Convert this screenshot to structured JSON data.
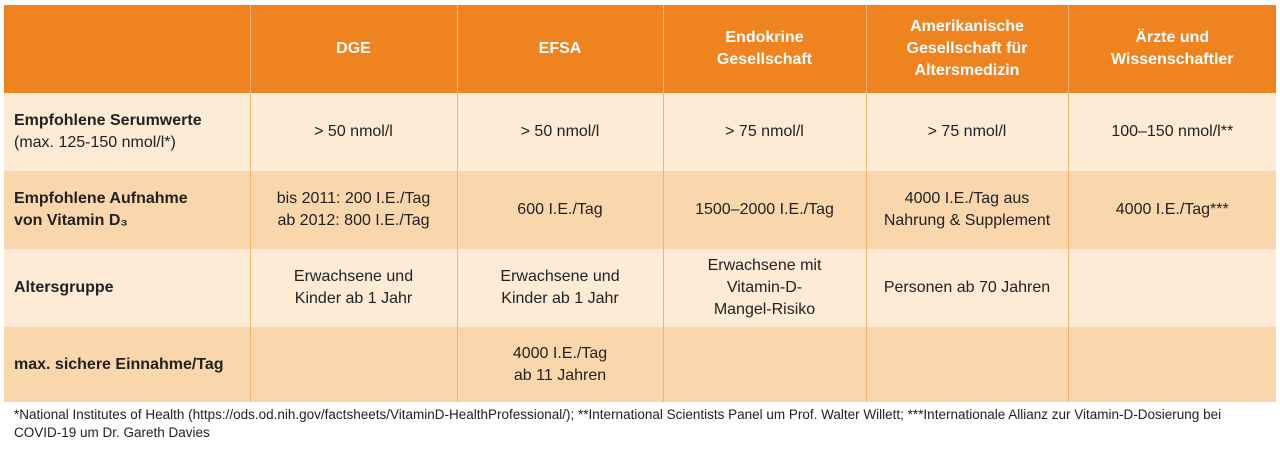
{
  "table": {
    "header": [
      [
        "DGE"
      ],
      [
        "EFSA"
      ],
      [
        "Endokrine",
        "Gesellschaft"
      ],
      [
        "Amerikanische",
        "Gesellschaft für",
        "Altersmedizin"
      ],
      [
        "Ärzte und",
        "Wissenschaftler"
      ]
    ],
    "rows": [
      {
        "label": [
          "Empfohlene Serumwerte"
        ],
        "sublabel": [
          "(max. 125-150 nmol/l*)"
        ],
        "cells": [
          [
            "> 50 nmol/l"
          ],
          [
            "> 50 nmol/l"
          ],
          [
            "> 75 nmol/l"
          ],
          [
            "> 75 nmol/l"
          ],
          [
            "100–150 nmol/l**"
          ]
        ]
      },
      {
        "label": [
          "Empfohlene Aufnahme",
          "von Vitamin D₃"
        ],
        "cells": [
          [
            "bis 2011: 200 I.E./Tag",
            "ab 2012: 800 I.E./Tag"
          ],
          [
            "600 I.E./Tag"
          ],
          [
            "1500–2000 I.E./Tag"
          ],
          [
            "4000 I.E./Tag aus",
            "Nahrung & Supplement"
          ],
          [
            "4000 I.E./Tag***"
          ]
        ]
      },
      {
        "label": [
          "Altersgruppe"
        ],
        "cells": [
          [
            "Erwachsene und",
            "Kinder ab 1 Jahr"
          ],
          [
            "Erwachsene und",
            "Kinder ab 1 Jahr"
          ],
          [
            "Erwachsene mit",
            "Vitamin-D-",
            "Mangel-Risiko"
          ],
          [
            "Personen ab 70 Jahren"
          ],
          []
        ]
      },
      {
        "label": [
          "max. sichere Einnahme/Tag"
        ],
        "cells": [
          [],
          [
            "4000 I.E./Tag",
            "ab 11 Jahren"
          ],
          [],
          [],
          []
        ]
      }
    ]
  },
  "footnote": "*National Institutes of Health (https://ods.od.nih.gov/factsheets/VitaminD-HealthProfessional/); **International Scientists Panel um Prof. Walter Willett; ***Internationale Allianz zur Vitamin-D-Dosierung bei COVID-19 um Dr. Gareth Davies"
}
